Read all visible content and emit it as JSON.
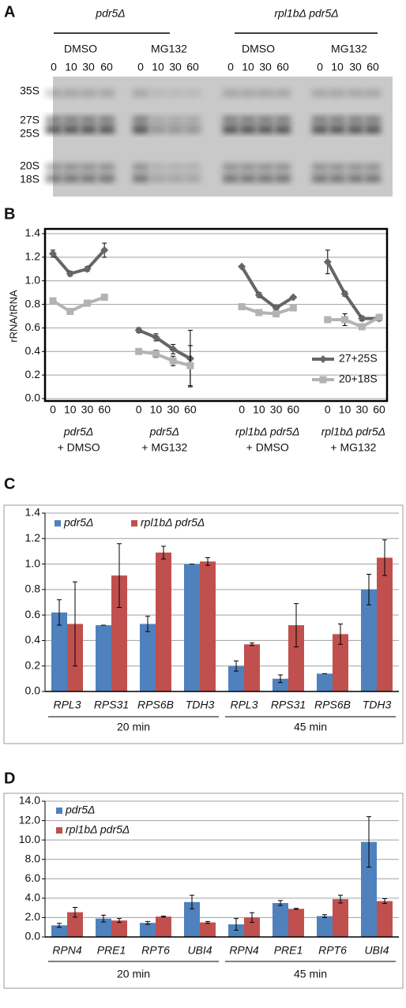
{
  "gel": {
    "panel": "A",
    "strain_labels": [
      "pdr5Δ",
      "rpl1bΔ pdr5Δ"
    ],
    "treatments": [
      "DMSO",
      "MG132",
      "DMSO",
      "MG132"
    ],
    "times": [
      [
        "0",
        "10",
        "30",
        "60"
      ],
      [
        "0",
        "10",
        "30",
        "60"
      ],
      [
        "0",
        "10",
        "30",
        "60"
      ],
      [
        "0",
        "10",
        "30",
        "60"
      ]
    ],
    "bands": [
      "35S",
      "27S",
      "25S",
      "20S",
      "18S"
    ]
  },
  "chart_data": [
    {
      "type": "line",
      "panel": "B",
      "y_label": "rRNA/tRNA",
      "categories": [
        "0",
        "10",
        "30",
        "60",
        null,
        "0",
        "10",
        "30",
        "60",
        null,
        null,
        "0",
        "10",
        "30",
        "60",
        null,
        "0",
        "10",
        "30",
        "60"
      ],
      "group_labels": [
        [
          "pdr5Δ",
          "+ DMSO"
        ],
        [
          "pdr5Δ",
          "+ MG132"
        ],
        [
          "rpl1bΔ pdr5Δ",
          "+ DMSO"
        ],
        [
          "rpl1bΔ pdr5Δ",
          "+ MG132"
        ]
      ],
      "series": [
        {
          "name": "27+25S",
          "color": "#666666",
          "marker": "diamond",
          "values": [
            1.23,
            1.06,
            1.1,
            1.26,
            null,
            0.58,
            0.52,
            0.42,
            0.34,
            null,
            null,
            1.12,
            0.88,
            0.77,
            0.86,
            null,
            1.16,
            0.89,
            0.68,
            0.68
          ],
          "errors": [
            0.03,
            0.02,
            0.02,
            0.06,
            null,
            0.02,
            0.03,
            0.04,
            0.24,
            null,
            null,
            0.01,
            0.02,
            0.02,
            0.01,
            null,
            0.1,
            0.02,
            0.02,
            0.02
          ]
        },
        {
          "name": "20+18S",
          "color": "#b3b3b3",
          "marker": "square",
          "values": [
            0.83,
            0.74,
            0.81,
            0.86,
            null,
            0.4,
            0.38,
            0.32,
            0.28,
            null,
            null,
            0.78,
            0.73,
            0.72,
            0.77,
            null,
            0.67,
            0.67,
            0.61,
            0.69
          ],
          "errors": [
            0.01,
            0.01,
            0.01,
            0.02,
            null,
            0.02,
            0.03,
            0.04,
            0.17,
            null,
            null,
            0.01,
            0.01,
            0.01,
            0.01,
            null,
            0.02,
            0.05,
            0.02,
            0.02
          ]
        }
      ],
      "ylim": [
        0,
        1.4
      ],
      "yticks": [
        {
          "value": 0,
          "label": "0.0"
        },
        {
          "value": 0.2,
          "label": "0.2"
        },
        {
          "value": 0.4,
          "label": "0.4"
        },
        {
          "value": 0.6,
          "label": "0.6"
        },
        {
          "value": 0.8,
          "label": "0.8"
        },
        {
          "value": 1.0,
          "label": "1.0"
        },
        {
          "value": 1.2,
          "label": "1.2"
        },
        {
          "value": 1.4,
          "label": "1.4"
        }
      ],
      "grid": true,
      "legend": "lower right"
    },
    {
      "type": "bar",
      "panel": "C",
      "categories": [
        "RPL3",
        "RPS31",
        "RPS6B",
        "TDH3",
        "RPL3",
        "RPS31",
        "RPS6B",
        "TDH3"
      ],
      "group_labels": [
        "20 min",
        "45 min"
      ],
      "series": [
        {
          "name": "pdr5Δ",
          "color": "#4f81bd",
          "values": [
            0.62,
            0.52,
            0.53,
            1.0,
            0.2,
            0.1,
            0.14,
            0.8
          ],
          "errors": [
            0.1,
            0.0,
            0.06,
            0.0,
            0.04,
            0.03,
            0.0,
            0.12
          ]
        },
        {
          "name": "rpl1bΔ pdr5Δ",
          "color": "#c0504d",
          "values": [
            0.53,
            0.91,
            1.09,
            1.02,
            0.37,
            0.52,
            0.45,
            1.05
          ],
          "errors": [
            0.33,
            0.25,
            0.05,
            0.03,
            0.01,
            0.17,
            0.08,
            0.14
          ]
        }
      ],
      "ylim": [
        0,
        1.4
      ],
      "yticks": [
        {
          "value": 0,
          "label": "0.0"
        },
        {
          "value": 0.2,
          "label": "0.2"
        },
        {
          "value": 0.4,
          "label": "0.4"
        },
        {
          "value": 0.6,
          "label": "0.6"
        },
        {
          "value": 0.8,
          "label": "0.8"
        },
        {
          "value": 1.0,
          "label": "1.0"
        },
        {
          "value": 1.2,
          "label": "1.2"
        },
        {
          "value": 1.4,
          "label": "1.4"
        }
      ],
      "grid": true,
      "legend": "top"
    },
    {
      "type": "bar",
      "panel": "D",
      "categories": [
        "RPN4",
        "PRE1",
        "RPT6",
        "UBI4",
        "RPN4",
        "PRE1",
        "RPT6",
        "UBI4"
      ],
      "group_labels": [
        "20 min",
        "45 min"
      ],
      "series": [
        {
          "name": "pdr5Δ",
          "color": "#4f81bd",
          "values": [
            1.2,
            1.9,
            1.45,
            3.6,
            1.3,
            3.5,
            2.15,
            9.8
          ],
          "errors": [
            0.2,
            0.35,
            0.15,
            0.7,
            0.6,
            0.25,
            0.15,
            2.6
          ]
        },
        {
          "name": "rpl1bΔ pdr5Δ",
          "color": "#c0504d",
          "values": [
            2.55,
            1.7,
            2.1,
            1.5,
            2.0,
            2.9,
            3.9,
            3.7
          ],
          "errors": [
            0.5,
            0.2,
            0.05,
            0.1,
            0.5,
            0.05,
            0.4,
            0.25
          ]
        }
      ],
      "ylim": [
        0,
        14
      ],
      "yticks": [
        {
          "value": 0,
          "label": "0.0"
        },
        {
          "value": 2,
          "label": "2.0"
        },
        {
          "value": 4,
          "label": "4.0"
        },
        {
          "value": 6,
          "label": "6.0"
        },
        {
          "value": 8,
          "label": "8.0"
        },
        {
          "value": 10,
          "label": "10.0"
        },
        {
          "value": 12,
          "label": "12.0"
        },
        {
          "value": 14,
          "label": "14.0"
        }
      ],
      "grid": true,
      "legend": "upper left"
    }
  ]
}
